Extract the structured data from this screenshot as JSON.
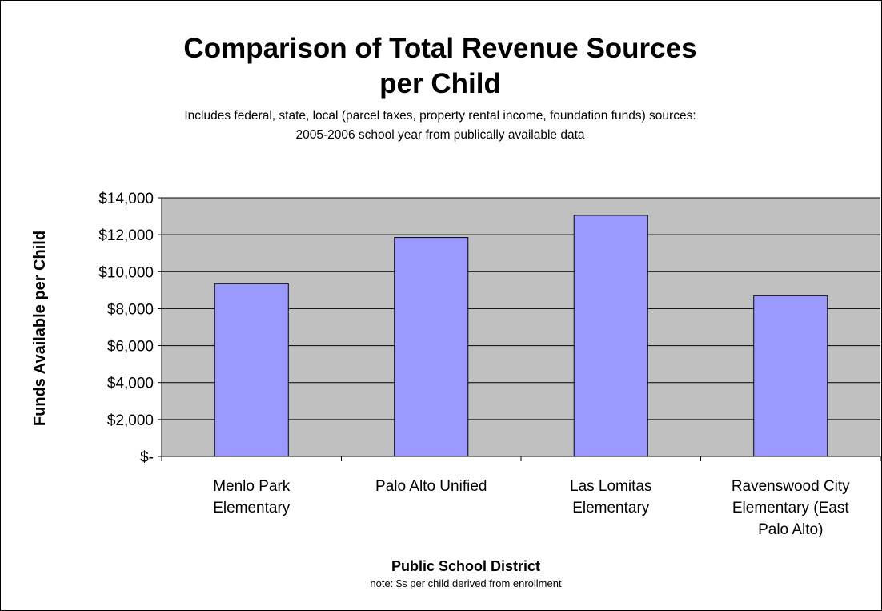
{
  "chart_data": {
    "type": "bar",
    "title_line1": "Comparison of Total Revenue Sources",
    "title_line2": "per Child",
    "subtitle_line1": "Includes federal, state, local (parcel taxes, property rental income, foundation funds) sources:",
    "subtitle_line2": "2005-2006 school year from publically available data",
    "ylabel": "Funds Available per Child",
    "xlabel": "Public School District",
    "note": "note: $s per child derived from enrollment",
    "categories": [
      [
        "Menlo Park",
        "Elementary"
      ],
      [
        "Palo Alto Unified"
      ],
      [
        "Las Lomitas",
        "Elementary"
      ],
      [
        "Ravenswood City",
        "Elementary (East",
        "Palo Alto)"
      ]
    ],
    "values": [
      9350,
      11850,
      13050,
      8700
    ],
    "ylim": [
      0,
      14000
    ],
    "yticks": [
      0,
      2000,
      4000,
      6000,
      8000,
      10000,
      12000,
      14000
    ],
    "ytick_labels": [
      "$-",
      "$2,000",
      "$4,000",
      "$6,000",
      "$8,000",
      "$10,000",
      "$12,000",
      "$14,000"
    ],
    "grid": true,
    "legend": "none",
    "colors": {
      "bar": "#9999ff",
      "plot_bg": "#c0c0c0",
      "bar_edge": "#000000"
    }
  }
}
